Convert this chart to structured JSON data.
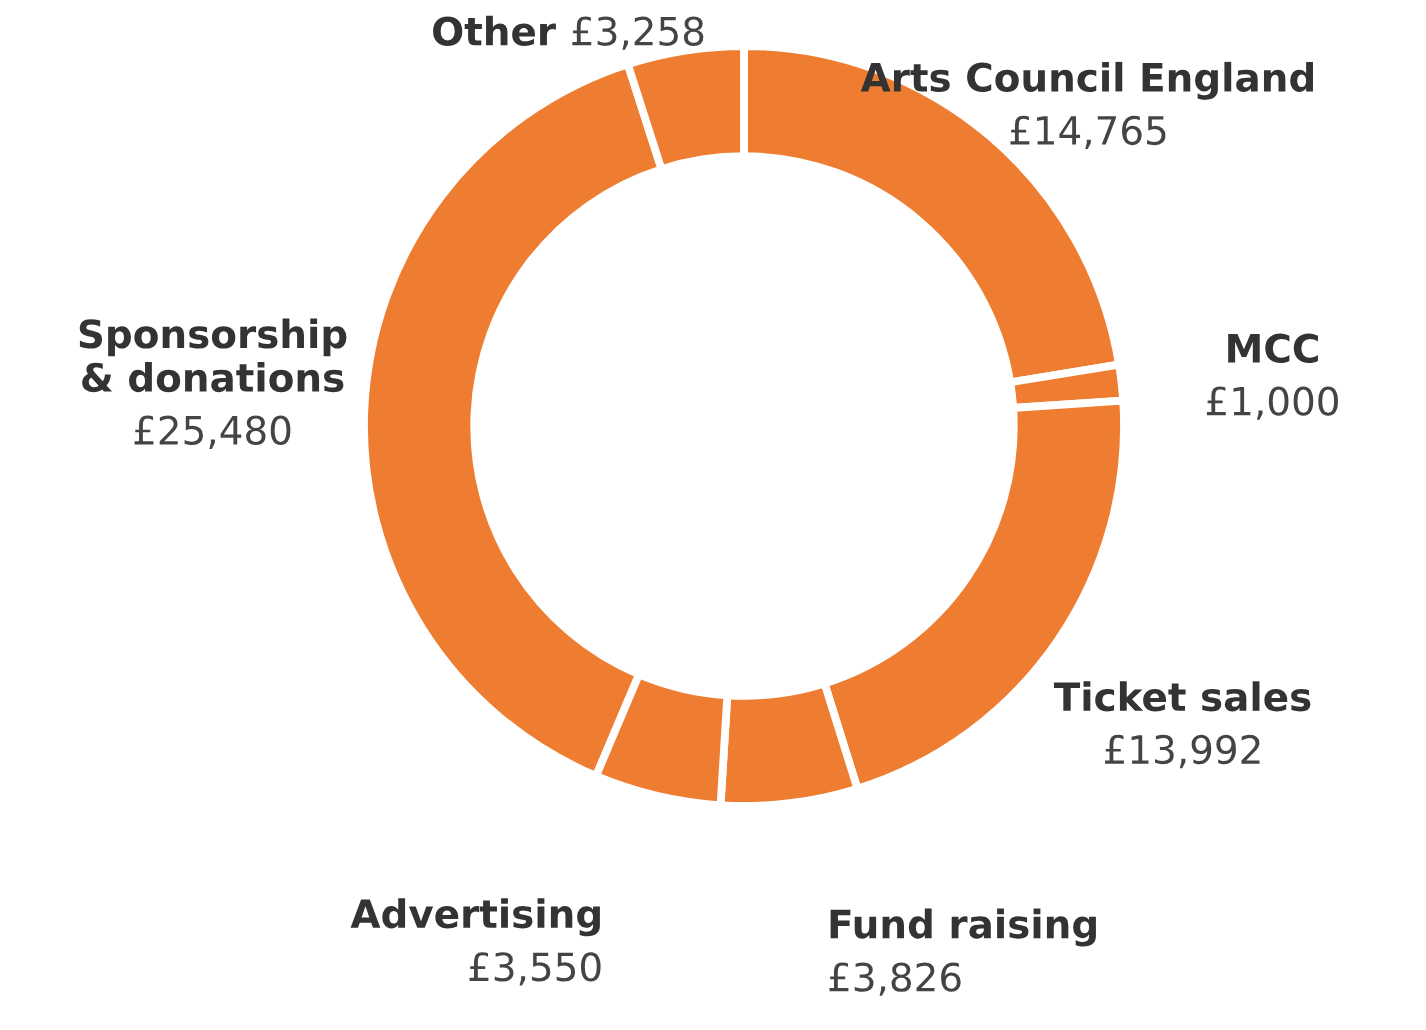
{
  "chart_data": {
    "type": "donut",
    "categories": [
      "Arts Council England",
      "MCC",
      "Ticket sales",
      "Fund raising",
      "Advertising",
      "Sponsorship\n& donations",
      "Other"
    ],
    "values": [
      14765,
      1000,
      13992,
      3826,
      3550,
      25480,
      3258
    ],
    "value_labels": [
      "£14,765",
      "£1,000",
      "£13,992",
      "£3,826",
      "£3,550",
      "£25,480",
      "£3,258"
    ],
    "colors": [
      "#ee7d31",
      "#ee7d31",
      "#ee7d31",
      "#ee7d31",
      "#ee7d31",
      "#ee7d31",
      "#ee7d31"
    ],
    "legend": false
  }
}
